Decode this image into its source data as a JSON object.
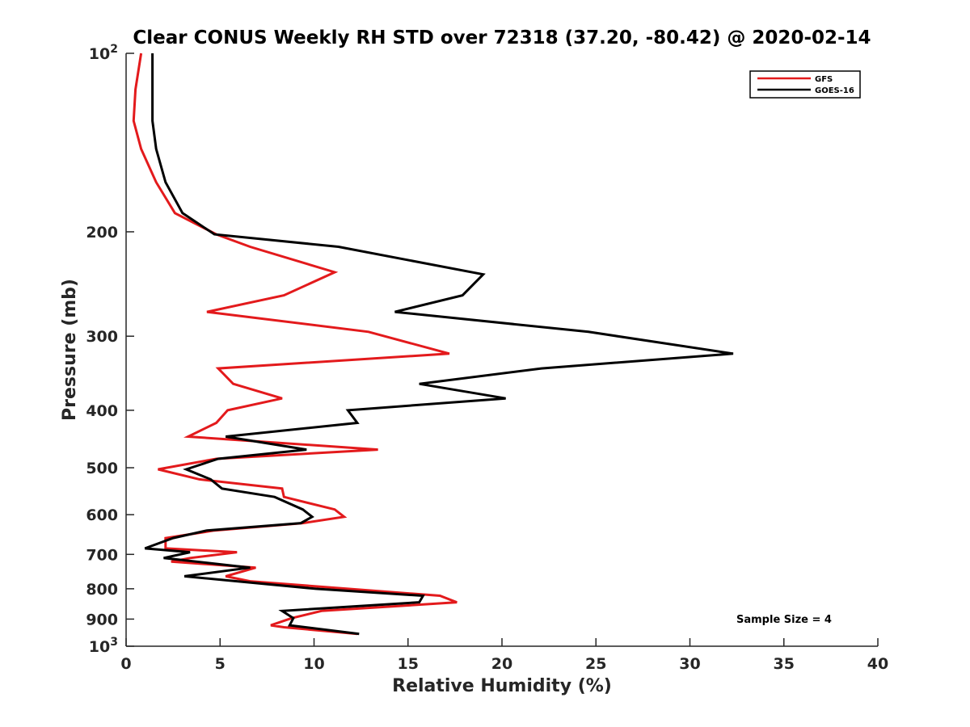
{
  "chart_data": {
    "type": "line",
    "title": "Clear CONUS Weekly RH STD over 72318 (37.20, -80.42) @ 2020-02-14",
    "xlabel": "Relative Humidity (%)",
    "ylabel": "Pressure (mb)",
    "xlim": [
      0,
      40
    ],
    "ylim": [
      100,
      1000
    ],
    "y_scale": "log",
    "y_reversed": true,
    "grid": false,
    "x_ticks": [
      0,
      5,
      10,
      15,
      20,
      25,
      30,
      35,
      40
    ],
    "x_tick_labels": [
      "0",
      "5",
      "10",
      "15",
      "20",
      "25",
      "30",
      "35",
      "40"
    ],
    "y_ticks": [
      100,
      200,
      300,
      400,
      500,
      600,
      700,
      800,
      900,
      1000
    ],
    "y_tick_labels": [
      {
        "base": "10",
        "exp": "2"
      },
      {
        "base": "200",
        "exp": ""
      },
      {
        "base": "300",
        "exp": ""
      },
      {
        "base": "400",
        "exp": ""
      },
      {
        "base": "500",
        "exp": ""
      },
      {
        "base": "600",
        "exp": ""
      },
      {
        "base": "700",
        "exp": ""
      },
      {
        "base": "800",
        "exp": ""
      },
      {
        "base": "900",
        "exp": ""
      },
      {
        "base": "10",
        "exp": "3"
      }
    ],
    "legend_position": "top-right",
    "annotation": "Sample Size = 4",
    "series": [
      {
        "name": "GFS",
        "color": "#e31a1c",
        "points": [
          [
            0.8,
            100
          ],
          [
            0.5,
            115
          ],
          [
            0.4,
            130
          ],
          [
            0.8,
            145
          ],
          [
            1.6,
            165
          ],
          [
            2.6,
            186
          ],
          [
            4.8,
            202
          ],
          [
            6.6,
            212
          ],
          [
            11.1,
            234
          ],
          [
            8.4,
            256
          ],
          [
            4.3,
            273
          ],
          [
            12.9,
            295
          ],
          [
            17.2,
            321
          ],
          [
            4.9,
            340
          ],
          [
            5.7,
            361
          ],
          [
            8.3,
            382
          ],
          [
            5.4,
            400
          ],
          [
            4.8,
            420
          ],
          [
            3.3,
            443
          ],
          [
            13.4,
            466
          ],
          [
            4.8,
            483
          ],
          [
            1.7,
            503
          ],
          [
            3.9,
            523
          ],
          [
            8.3,
            542
          ],
          [
            8.4,
            560
          ],
          [
            11.1,
            588
          ],
          [
            11.6,
            605
          ],
          [
            9.4,
            620
          ],
          [
            4.7,
            638
          ],
          [
            2.1,
            657
          ],
          [
            2.1,
            684
          ],
          [
            5.9,
            694
          ],
          [
            3.4,
            710
          ],
          [
            2.4,
            720
          ],
          [
            6.9,
            737
          ],
          [
            5.3,
            762
          ],
          [
            6.6,
            777
          ],
          [
            11.8,
            800
          ],
          [
            16.7,
            822
          ],
          [
            17.6,
            843
          ],
          [
            10.4,
            872
          ],
          [
            8.8,
            897
          ],
          [
            7.7,
            922
          ],
          [
            8.4,
            929
          ],
          [
            12.3,
            953
          ]
        ]
      },
      {
        "name": "GOES-16",
        "color": "#000000",
        "points": [
          [
            1.4,
            100
          ],
          [
            1.4,
            130
          ],
          [
            1.6,
            145
          ],
          [
            2.1,
            165
          ],
          [
            3.0,
            186
          ],
          [
            4.7,
            202
          ],
          [
            11.3,
            212
          ],
          [
            19.0,
            236
          ],
          [
            17.9,
            256
          ],
          [
            14.3,
            273
          ],
          [
            24.6,
            295
          ],
          [
            32.3,
            321
          ],
          [
            22.1,
            340
          ],
          [
            15.6,
            361
          ],
          [
            20.2,
            382
          ],
          [
            11.8,
            400
          ],
          [
            12.3,
            420
          ],
          [
            5.3,
            443
          ],
          [
            9.6,
            466
          ],
          [
            4.9,
            483
          ],
          [
            3.2,
            503
          ],
          [
            4.5,
            523
          ],
          [
            5.1,
            542
          ],
          [
            7.9,
            560
          ],
          [
            9.4,
            588
          ],
          [
            9.9,
            605
          ],
          [
            9.3,
            620
          ],
          [
            4.3,
            638
          ],
          [
            2.5,
            657
          ],
          [
            1.0,
            684
          ],
          [
            3.4,
            694
          ],
          [
            2.0,
            710
          ],
          [
            6.6,
            737
          ],
          [
            3.1,
            762
          ],
          [
            10.1,
            800
          ],
          [
            15.8,
            822
          ],
          [
            15.6,
            843
          ],
          [
            8.3,
            872
          ],
          [
            8.9,
            897
          ],
          [
            8.7,
            922
          ],
          [
            12.4,
            953
          ]
        ]
      }
    ]
  }
}
